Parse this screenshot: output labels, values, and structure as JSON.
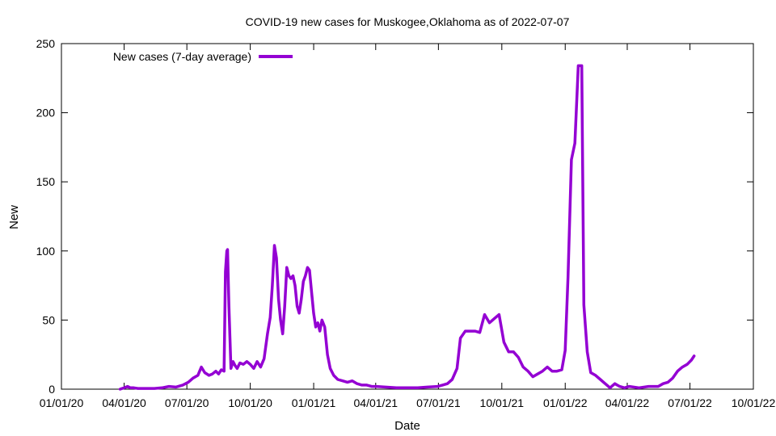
{
  "chart_data": {
    "type": "line",
    "title": "COVID-19 new cases for Muskogee,Oklahoma as of 2022-07-07",
    "xlabel": "Date",
    "ylabel": "New",
    "ylim": [
      0,
      250
    ],
    "xlim": [
      "2020-01-01",
      "2022-10-01"
    ],
    "y_ticks": [
      0,
      50,
      100,
      150,
      200,
      250
    ],
    "x_ticks": [
      {
        "date": "2020-01-01",
        "label": "01/01/20"
      },
      {
        "date": "2020-04-01",
        "label": "04/01/20"
      },
      {
        "date": "2020-07-01",
        "label": "07/01/20"
      },
      {
        "date": "2020-10-01",
        "label": "10/01/20"
      },
      {
        "date": "2021-01-01",
        "label": "01/01/21"
      },
      {
        "date": "2021-04-01",
        "label": "04/01/21"
      },
      {
        "date": "2021-07-01",
        "label": "07/01/21"
      },
      {
        "date": "2021-10-01",
        "label": "10/01/21"
      },
      {
        "date": "2022-01-01",
        "label": "01/01/22"
      },
      {
        "date": "2022-04-01",
        "label": "04/01/22"
      },
      {
        "date": "2022-07-01",
        "label": "07/01/22"
      },
      {
        "date": "2022-10-01",
        "label": "10/01/22"
      }
    ],
    "grid": false,
    "legend_position": "top-left",
    "series": [
      {
        "name": "New cases (7-day average)",
        "color": "#9400d3",
        "points": [
          [
            "2020-03-26",
            0
          ],
          [
            "2020-04-01",
            1
          ],
          [
            "2020-04-06",
            2
          ],
          [
            "2020-04-10",
            1
          ],
          [
            "2020-04-15",
            1
          ],
          [
            "2020-04-21",
            0.5
          ],
          [
            "2020-05-01",
            0.5
          ],
          [
            "2020-05-15",
            0.5
          ],
          [
            "2020-05-26",
            1
          ],
          [
            "2020-06-05",
            2
          ],
          [
            "2020-06-15",
            1.5
          ],
          [
            "2020-06-25",
            3
          ],
          [
            "2020-07-03",
            5
          ],
          [
            "2020-07-10",
            8
          ],
          [
            "2020-07-17",
            10
          ],
          [
            "2020-07-22",
            16
          ],
          [
            "2020-07-27",
            12
          ],
          [
            "2020-08-02",
            10
          ],
          [
            "2020-08-07",
            11
          ],
          [
            "2020-08-12",
            13
          ],
          [
            "2020-08-16",
            11
          ],
          [
            "2020-08-20",
            14
          ],
          [
            "2020-08-24",
            13
          ],
          [
            "2020-08-26",
            85
          ],
          [
            "2020-08-28",
            100
          ],
          [
            "2020-08-29",
            101
          ],
          [
            "2020-08-31",
            60
          ],
          [
            "2020-09-03",
            15
          ],
          [
            "2020-09-06",
            20
          ],
          [
            "2020-09-09",
            17
          ],
          [
            "2020-09-12",
            15
          ],
          [
            "2020-09-16",
            19
          ],
          [
            "2020-09-21",
            18
          ],
          [
            "2020-09-26",
            20
          ],
          [
            "2020-10-01",
            18
          ],
          [
            "2020-10-06",
            15
          ],
          [
            "2020-10-11",
            20
          ],
          [
            "2020-10-16",
            16
          ],
          [
            "2020-10-21",
            22
          ],
          [
            "2020-10-26",
            40
          ],
          [
            "2020-10-30",
            52
          ],
          [
            "2020-11-02",
            75
          ],
          [
            "2020-11-05",
            104
          ],
          [
            "2020-11-08",
            95
          ],
          [
            "2020-11-11",
            65
          ],
          [
            "2020-11-14",
            50
          ],
          [
            "2020-11-17",
            40
          ],
          [
            "2020-11-20",
            60
          ],
          [
            "2020-11-23",
            88
          ],
          [
            "2020-11-26",
            82
          ],
          [
            "2020-11-29",
            80
          ],
          [
            "2020-12-02",
            82
          ],
          [
            "2020-12-05",
            75
          ],
          [
            "2020-12-08",
            60
          ],
          [
            "2020-12-11",
            55
          ],
          [
            "2020-12-14",
            65
          ],
          [
            "2020-12-17",
            78
          ],
          [
            "2020-12-20",
            82
          ],
          [
            "2020-12-23",
            88
          ],
          [
            "2020-12-26",
            86
          ],
          [
            "2020-12-29",
            70
          ],
          [
            "2021-01-01",
            55
          ],
          [
            "2021-01-04",
            45
          ],
          [
            "2021-01-07",
            48
          ],
          [
            "2021-01-10",
            42
          ],
          [
            "2021-01-13",
            50
          ],
          [
            "2021-01-17",
            45
          ],
          [
            "2021-01-21",
            25
          ],
          [
            "2021-01-25",
            15
          ],
          [
            "2021-01-30",
            10
          ],
          [
            "2021-02-05",
            7
          ],
          [
            "2021-02-12",
            6
          ],
          [
            "2021-02-19",
            5
          ],
          [
            "2021-02-26",
            6
          ],
          [
            "2021-03-05",
            4
          ],
          [
            "2021-03-12",
            3
          ],
          [
            "2021-03-19",
            3
          ],
          [
            "2021-03-26",
            2
          ],
          [
            "2021-04-02",
            2
          ],
          [
            "2021-04-15",
            1.5
          ],
          [
            "2021-05-01",
            1
          ],
          [
            "2021-05-15",
            1
          ],
          [
            "2021-06-01",
            1
          ],
          [
            "2021-06-15",
            1.5
          ],
          [
            "2021-06-30",
            2
          ],
          [
            "2021-07-07",
            3
          ],
          [
            "2021-07-14",
            4
          ],
          [
            "2021-07-21",
            7
          ],
          [
            "2021-07-28",
            15
          ],
          [
            "2021-08-02",
            37
          ],
          [
            "2021-08-09",
            42
          ],
          [
            "2021-08-16",
            42
          ],
          [
            "2021-08-23",
            42
          ],
          [
            "2021-08-30",
            41
          ],
          [
            "2021-09-06",
            54
          ],
          [
            "2021-09-13",
            48
          ],
          [
            "2021-09-20",
            51
          ],
          [
            "2021-09-27",
            54
          ],
          [
            "2021-10-04",
            34
          ],
          [
            "2021-10-11",
            27
          ],
          [
            "2021-10-18",
            27
          ],
          [
            "2021-10-25",
            23
          ],
          [
            "2021-11-01",
            16
          ],
          [
            "2021-11-08",
            13
          ],
          [
            "2021-11-15",
            9
          ],
          [
            "2021-11-22",
            11
          ],
          [
            "2021-11-29",
            13
          ],
          [
            "2021-12-06",
            16
          ],
          [
            "2021-12-13",
            13
          ],
          [
            "2021-12-20",
            13
          ],
          [
            "2021-12-27",
            14
          ],
          [
            "2022-01-01",
            28
          ],
          [
            "2022-01-05",
            81
          ],
          [
            "2022-01-10",
            166
          ],
          [
            "2022-01-15",
            178
          ],
          [
            "2022-01-20",
            234
          ],
          [
            "2022-01-25",
            234
          ],
          [
            "2022-01-28",
            61
          ],
          [
            "2022-02-02",
            27
          ],
          [
            "2022-02-07",
            12
          ],
          [
            "2022-02-14",
            10
          ],
          [
            "2022-02-21",
            7
          ],
          [
            "2022-02-28",
            4
          ],
          [
            "2022-03-07",
            1
          ],
          [
            "2022-03-14",
            4
          ],
          [
            "2022-03-21",
            2
          ],
          [
            "2022-03-28",
            1
          ],
          [
            "2022-04-04",
            2
          ],
          [
            "2022-04-18",
            1
          ],
          [
            "2022-05-02",
            2
          ],
          [
            "2022-05-16",
            2
          ],
          [
            "2022-05-23",
            4
          ],
          [
            "2022-05-30",
            5
          ],
          [
            "2022-06-06",
            8
          ],
          [
            "2022-06-13",
            13
          ],
          [
            "2022-06-20",
            16
          ],
          [
            "2022-06-27",
            18
          ],
          [
            "2022-07-03",
            21
          ],
          [
            "2022-07-07",
            24
          ]
        ]
      }
    ]
  }
}
